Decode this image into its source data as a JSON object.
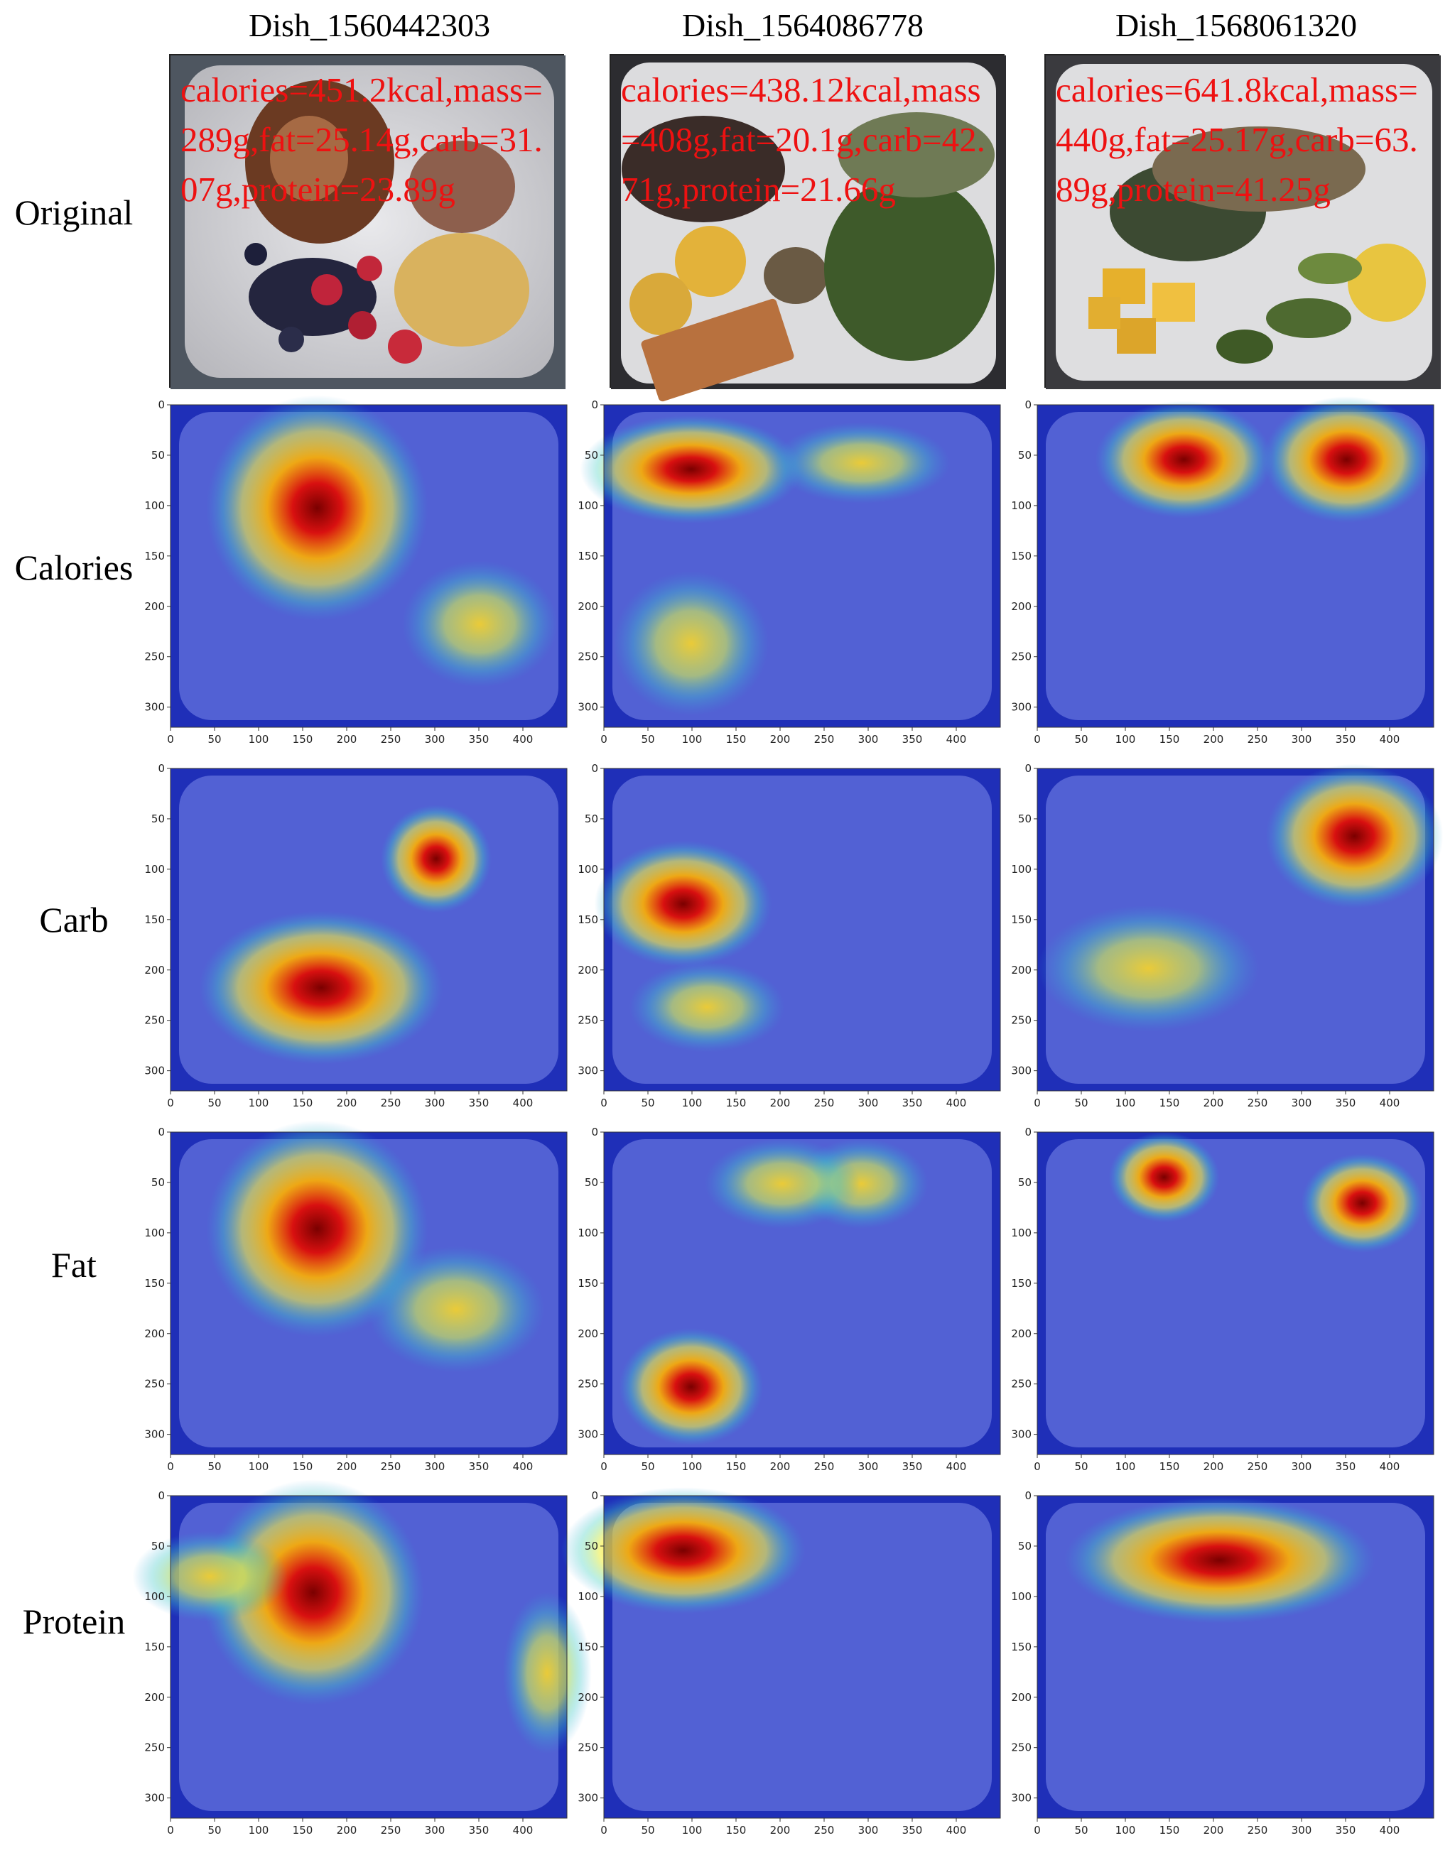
{
  "dishes": [
    {
      "name": "Dish_1560442303",
      "info": "calories=451.2kcal,mass=289g,fat=25.14g,carb=31.07g,protein=23.89g"
    },
    {
      "name": "Dish_1564086778",
      "info": "calories=438.12kcal,mass=408g,fat=20.1g,carb=42.71g,protein=21.66g"
    },
    {
      "name": "Dish_1568061320",
      "info": "calories=641.8kcal,mass=440g,fat=25.17g,carb=63.89g,protein=41.25g"
    }
  ],
  "rows": {
    "original": "Original",
    "calories": "Calories",
    "carb": "Carb",
    "fat": "Fat",
    "protein": "Protein"
  },
  "axes": {
    "x_ticks": [
      0,
      50,
      100,
      150,
      200,
      250,
      300,
      350,
      400
    ],
    "y_ticks": [
      0,
      50,
      100,
      150,
      200,
      250,
      300
    ],
    "x_range": [
      0,
      450
    ],
    "y_range": [
      0,
      320
    ]
  },
  "colormap": "jet"
}
